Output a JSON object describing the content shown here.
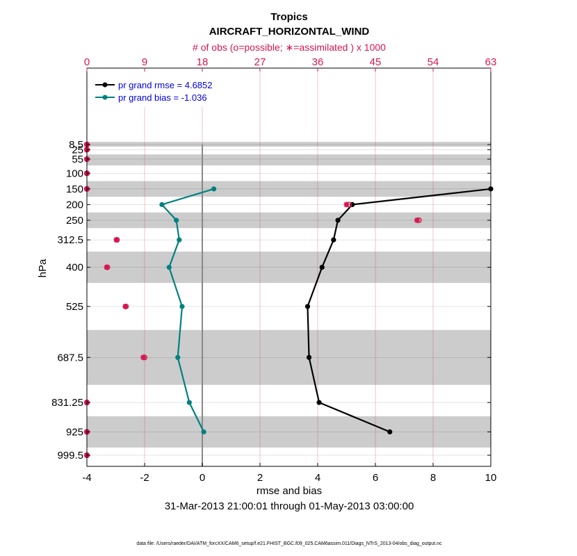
{
  "chart_data": {
    "type": "line",
    "title": "Tropics",
    "subtitle": "AIRCRAFT_HORIZONTAL_WIND",
    "top_axis_label": "# of obs (o=possible; ∗=assimilated ) x 1000",
    "xlabel": "rmse and bias",
    "ylabel": "hPa",
    "date_range": "31-Mar-2013 21:00:01 through 01-May-2013 03:00:00",
    "footer": "data file: /Users/raeder/DAI/ATM_forcXX/CAM6_setup/f.e21.FHIST_BGC.f09_025.CAM6assim.011/Diags_NTrS_2013-04/obs_diag_output.nc",
    "xlim": [
      -4,
      10
    ],
    "xticks": [
      -4,
      -2,
      0,
      2,
      4,
      6,
      8,
      10
    ],
    "top_xlim": [
      0,
      63
    ],
    "top_xticks": [
      0,
      9,
      18,
      27,
      36,
      45,
      54,
      63
    ],
    "levels": [
      "8.5",
      "25",
      "55",
      "100",
      "150",
      "200",
      "250",
      "312.5",
      "400",
      "525",
      "687.5",
      "831.25",
      "925",
      "999.5"
    ],
    "level_values": [
      8.5,
      25,
      55,
      100,
      150,
      200,
      250,
      312.5,
      400,
      525,
      687.5,
      831.25,
      925,
      999.5
    ],
    "shaded_bands": [
      [
        0,
        15
      ],
      [
        40,
        75
      ],
      [
        125,
        175
      ],
      [
        225,
        275
      ],
      [
        350,
        450
      ],
      [
        600,
        775
      ],
      [
        875,
        975
      ]
    ],
    "series": [
      {
        "name": "pr grand rmse = 4.6852",
        "color": "#000000",
        "levels": [
          150,
          200,
          250,
          312.5,
          400,
          525,
          687.5,
          831.25,
          925
        ],
        "values": [
          10.0,
          5.2,
          4.7,
          4.55,
          4.15,
          3.65,
          3.7,
          4.05,
          6.5
        ]
      },
      {
        "name": "pr grand bias = -1.036",
        "color": "#008080",
        "levels": [
          150,
          200,
          250,
          312.5,
          400,
          525,
          687.5,
          831.25,
          925
        ],
        "values": [
          0.4,
          -1.4,
          -0.9,
          -0.8,
          -1.15,
          -0.7,
          -0.85,
          -0.45,
          0.05
        ]
      }
    ],
    "obs_counts": {
      "color": "#d6164e",
      "levels": [
        8.5,
        25,
        55,
        100,
        150,
        200,
        250,
        312.5,
        400,
        525,
        687.5,
        831.25,
        925,
        999.5
      ],
      "possible": [
        0,
        0,
        0,
        0,
        0,
        40.9,
        51.8,
        4.7,
        3.2,
        6.1,
        9.0,
        0,
        0,
        0
      ],
      "assimilated": [
        0,
        0,
        0,
        0,
        0,
        40.5,
        51.5,
        4.6,
        3.1,
        6.0,
        8.8,
        0,
        0,
        0
      ]
    }
  }
}
